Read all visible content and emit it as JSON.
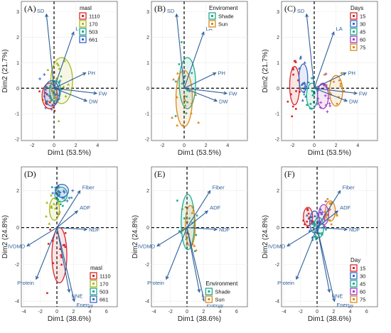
{
  "chart_data": [
    {
      "type": "scatter",
      "panel_label": "(A)",
      "xlabel": "Dim1 (53.5%)",
      "ylabel": "Dim2 (21.7%)",
      "xlim": [
        -3,
        5.8
      ],
      "ylim": [
        -2.05,
        3.4
      ],
      "xticks": [
        -2,
        0,
        2,
        4
      ],
      "yticks": [
        -2,
        -1,
        0,
        1,
        2,
        3
      ],
      "grid": true,
      "legend": {
        "title": "masl",
        "position": "top-right",
        "entries": [
          "1110",
          "170",
          "503",
          "661"
        ],
        "colors": [
          "#d7272b",
          "#a9b81f",
          "#21ab8e",
          "#3a69c7"
        ]
      },
      "variables": [
        {
          "name": "SD",
          "x": -0.7,
          "y": 2.9
        },
        {
          "name": "LA",
          "x": 1.8,
          "y": 2.2
        },
        {
          "name": "PH",
          "x": 2.9,
          "y": 0.6
        },
        {
          "name": "FW",
          "x": 3.9,
          "y": -0.2
        },
        {
          "name": "DW",
          "x": 3.0,
          "y": -0.5
        }
      ],
      "ellipses": [
        {
          "group": "1110",
          "cx": -0.4,
          "cy": -0.3,
          "rx": 0.7,
          "ry": 0.5
        },
        {
          "group": "170",
          "cx": 0.7,
          "cy": 0.3,
          "rx": 1.0,
          "ry": 0.9
        },
        {
          "group": "503",
          "cx": 0.1,
          "cy": -0.1,
          "rx": 0.5,
          "ry": 0.4
        },
        {
          "group": "661",
          "cx": -0.2,
          "cy": -0.2,
          "rx": 0.7,
          "ry": 0.5
        }
      ]
    },
    {
      "type": "scatter",
      "panel_label": "(B)",
      "xlabel": "Dim1 (53.5%)",
      "ylabel": "",
      "xlim": [
        -3,
        5.8
      ],
      "ylim": [
        -2.05,
        3.4
      ],
      "xticks": [
        -2,
        0,
        2,
        4
      ],
      "yticks": [
        -2,
        -1,
        0,
        1,
        2,
        3
      ],
      "grid": true,
      "legend": {
        "title": "Enviroment",
        "position": "top-right",
        "entries": [
          "Shade",
          "Sun"
        ],
        "colors": [
          "#21ab8e",
          "#d98a1f"
        ]
      },
      "variables": [
        {
          "name": "SD",
          "x": -0.7,
          "y": 2.9
        },
        {
          "name": "LA",
          "x": 1.8,
          "y": 2.2
        },
        {
          "name": "PH",
          "x": 2.9,
          "y": 0.6
        },
        {
          "name": "FW",
          "x": 3.9,
          "y": -0.2
        },
        {
          "name": "DW",
          "x": 3.0,
          "y": -0.5
        }
      ],
      "ellipses": [
        {
          "group": "Shade",
          "cx": 0.3,
          "cy": 0.2,
          "rx": 0.75,
          "ry": 1.0
        },
        {
          "group": "Sun",
          "cx": 0.0,
          "cy": -0.4,
          "rx": 0.75,
          "ry": 1.1
        }
      ]
    },
    {
      "type": "scatter",
      "panel_label": "(C)",
      "xlabel": "Dim1 (53.5%)",
      "ylabel": "Dim2 (21.7%)",
      "xlim": [
        -3,
        5.8
      ],
      "ylim": [
        -2.05,
        3.4
      ],
      "xticks": [
        -2,
        0,
        2,
        4
      ],
      "yticks": [
        -2,
        -1,
        0,
        1,
        2,
        3
      ],
      "grid": true,
      "legend": {
        "title": "Days",
        "position": "top-right",
        "entries": [
          "15",
          "30",
          "45",
          "60",
          "75"
        ],
        "colors": [
          "#d7272b",
          "#3a69c7",
          "#21ab8e",
          "#a23fc8",
          "#d98a1f"
        ]
      },
      "variables": [
        {
          "name": "SD",
          "x": -0.7,
          "y": 2.9
        },
        {
          "name": "LA",
          "x": 1.8,
          "y": 2.2
        },
        {
          "name": "PH",
          "x": 2.9,
          "y": 0.6
        },
        {
          "name": "FW",
          "x": 3.9,
          "y": -0.2
        },
        {
          "name": "DW",
          "x": 3.0,
          "y": -0.5
        }
      ],
      "ellipses": [
        {
          "group": "15",
          "cx": -1.8,
          "cy": 0.1,
          "rx": 0.45,
          "ry": 0.75
        },
        {
          "group": "30",
          "cx": -1.0,
          "cy": 0.4,
          "rx": 0.4,
          "ry": 0.55
        },
        {
          "group": "45",
          "cx": -0.2,
          "cy": -0.3,
          "rx": 0.5,
          "ry": 0.5
        },
        {
          "group": "60",
          "cx": 0.8,
          "cy": -0.3,
          "rx": 0.5,
          "ry": 0.5
        },
        {
          "group": "75",
          "cx": 2.0,
          "cy": -0.1,
          "rx": 0.6,
          "ry": 0.6
        }
      ]
    },
    {
      "type": "scatter",
      "panel_label": "(D)",
      "xlabel": "Dim1 (38.6%)",
      "ylabel": "Dim2 (24.8%)",
      "xlim": [
        -4.3,
        7.3
      ],
      "ylim": [
        -4.3,
        3.3
      ],
      "xticks": [
        -4,
        -2,
        0,
        2,
        4,
        6
      ],
      "yticks": [
        -4,
        -2,
        0,
        2
      ],
      "grid": true,
      "legend": {
        "title": "masl",
        "position": "bottom-right",
        "entries": [
          "1110",
          "170",
          "503",
          "661"
        ],
        "colors": [
          "#d7272b",
          "#a9b81f",
          "#21ab8e",
          "#3a69c7"
        ]
      },
      "variables": [
        {
          "name": "Fiber",
          "x": 2.8,
          "y": 2.0
        },
        {
          "name": "ADF",
          "x": 2.5,
          "y": 0.9
        },
        {
          "name": "NDF",
          "x": 3.6,
          "y": -0.1
        },
        {
          "name": "IVDMD",
          "x": -3.6,
          "y": -1.0
        },
        {
          "name": "Protein",
          "x": -2.5,
          "y": -2.8
        },
        {
          "name": "NNE",
          "x": 1.5,
          "y": -3.5
        },
        {
          "name": "Energy",
          "x": 2.1,
          "y": -4.0
        }
      ],
      "ellipses": [
        {
          "group": "1110",
          "cx": 0.3,
          "cy": -1.5,
          "rx": 0.9,
          "ry": 1.5
        },
        {
          "group": "170",
          "cx": -0.3,
          "cy": 1.0,
          "rx": 0.6,
          "ry": 0.6
        },
        {
          "group": "503",
          "cx": 0.5,
          "cy": 1.8,
          "rx": 0.75,
          "ry": 0.4
        },
        {
          "group": "661",
          "cx": 0.6,
          "cy": 2.0,
          "rx": 0.8,
          "ry": 0.35
        }
      ]
    },
    {
      "type": "scatter",
      "panel_label": "(E)",
      "xlabel": "Dim1 (38.6%)",
      "ylabel": "Dim2 (24.8%)",
      "xlim": [
        -4.3,
        7.3
      ],
      "ylim": [
        -4.3,
        3.3
      ],
      "xticks": [
        -4,
        -2,
        0,
        2,
        4,
        6
      ],
      "yticks": [
        -4,
        -2,
        0,
        2
      ],
      "grid": true,
      "legend": {
        "title": "Environment",
        "position": "bottom-right",
        "entries": [
          "Shade",
          "Sun"
        ],
        "colors": [
          "#21ab8e",
          "#d98a1f"
        ]
      },
      "variables": [
        {
          "name": "Fiber",
          "x": 2.8,
          "y": 2.0
        },
        {
          "name": "ADF",
          "x": 2.5,
          "y": 0.9
        },
        {
          "name": "NDF",
          "x": 3.6,
          "y": -0.1
        },
        {
          "name": "IVDMD",
          "x": -3.6,
          "y": -1.0
        },
        {
          "name": "Protein",
          "x": -2.5,
          "y": -2.8
        },
        {
          "name": "NNE",
          "x": 1.5,
          "y": -3.5
        },
        {
          "name": "Energy",
          "x": 2.1,
          "y": -4.0
        }
      ],
      "ellipses": [
        {
          "group": "Shade",
          "cx": 0.1,
          "cy": 0.3,
          "rx": 0.8,
          "ry": 1.5
        },
        {
          "group": "Sun",
          "cx": 0.4,
          "cy": 0.1,
          "rx": 0.6,
          "ry": 1.1
        }
      ]
    },
    {
      "type": "scatter",
      "panel_label": "(F)",
      "xlabel": "Dim1 (38.6%)",
      "ylabel": "Dim2 (24.8%)",
      "xlim": [
        -4.3,
        7.3
      ],
      "ylim": [
        -4.3,
        3.3
      ],
      "xticks": [
        -4,
        -2,
        0,
        2,
        4,
        6
      ],
      "yticks": [
        -4,
        -2,
        0,
        2
      ],
      "grid": true,
      "legend": {
        "title": "Day",
        "position": "bottom-right",
        "entries": [
          "15",
          "30",
          "45",
          "60",
          "75"
        ],
        "colors": [
          "#d7272b",
          "#3a69c7",
          "#21ab8e",
          "#a23fc8",
          "#d98a1f"
        ]
      },
      "variables": [
        {
          "name": "Fiber",
          "x": 2.8,
          "y": 2.0
        },
        {
          "name": "ADF",
          "x": 2.5,
          "y": 0.9
        },
        {
          "name": "NDF",
          "x": 3.6,
          "y": -0.1
        },
        {
          "name": "IVDMD",
          "x": -3.6,
          "y": -1.0
        },
        {
          "name": "Protein",
          "x": -2.5,
          "y": -2.8
        },
        {
          "name": "NNE",
          "x": 1.5,
          "y": -3.5
        },
        {
          "name": "Energy",
          "x": 2.1,
          "y": -4.0
        }
      ],
      "ellipses": [
        {
          "group": "15",
          "cx": -1.1,
          "cy": 0.6,
          "rx": 0.55,
          "ry": 0.5
        },
        {
          "group": "30",
          "cx": -0.3,
          "cy": 0.3,
          "rx": 0.6,
          "ry": 0.6
        },
        {
          "group": "45",
          "cx": 0.2,
          "cy": 0.0,
          "rx": 0.6,
          "ry": 0.55
        },
        {
          "group": "60",
          "cx": 0.8,
          "cy": 0.7,
          "rx": 0.6,
          "ry": 0.55
        },
        {
          "group": "75",
          "cx": 1.6,
          "cy": 0.9,
          "rx": 0.6,
          "ry": 0.55
        }
      ]
    }
  ]
}
